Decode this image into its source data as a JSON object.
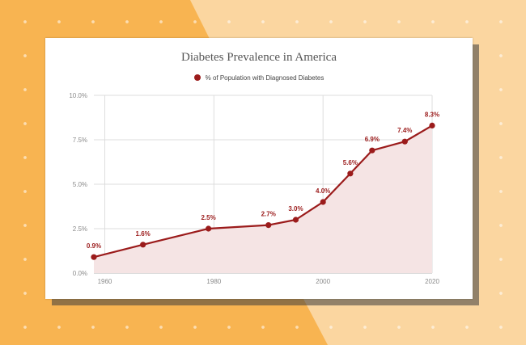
{
  "colors": {
    "background_left": "#f8b451",
    "background_right": "#fbd6a0",
    "series": "#9b1b1b",
    "area_fill": "#f5e4e4",
    "grid": "#dddddd"
  },
  "chart_data": {
    "type": "area",
    "title": "Diabetes Prevalence in America",
    "xlabel": "",
    "ylabel": "",
    "legend_position": "top-center",
    "grid": true,
    "xlim": [
      1958,
      2020
    ],
    "ylim": [
      0,
      10
    ],
    "x_ticks": [
      "1960",
      "1980",
      "2000",
      "2020"
    ],
    "y_ticks": [
      "0.0%",
      "2.5%",
      "5.0%",
      "7.5%",
      "10.0%"
    ],
    "series": [
      {
        "name": "% of Population with Diagnosed Diabetes",
        "x": [
          1958,
          1967,
          1979,
          1990,
          1995,
          2000,
          2005,
          2009,
          2015,
          2020
        ],
        "values": [
          0.9,
          1.6,
          2.5,
          2.7,
          3.0,
          4.0,
          5.6,
          6.9,
          7.4,
          8.3
        ],
        "labels": [
          "0.9%",
          "1.6%",
          "2.5%",
          "2.7%",
          "3.0%",
          "4.0%",
          "5.6%",
          "6.9%",
          "7.4%",
          "8.3%"
        ]
      }
    ]
  }
}
